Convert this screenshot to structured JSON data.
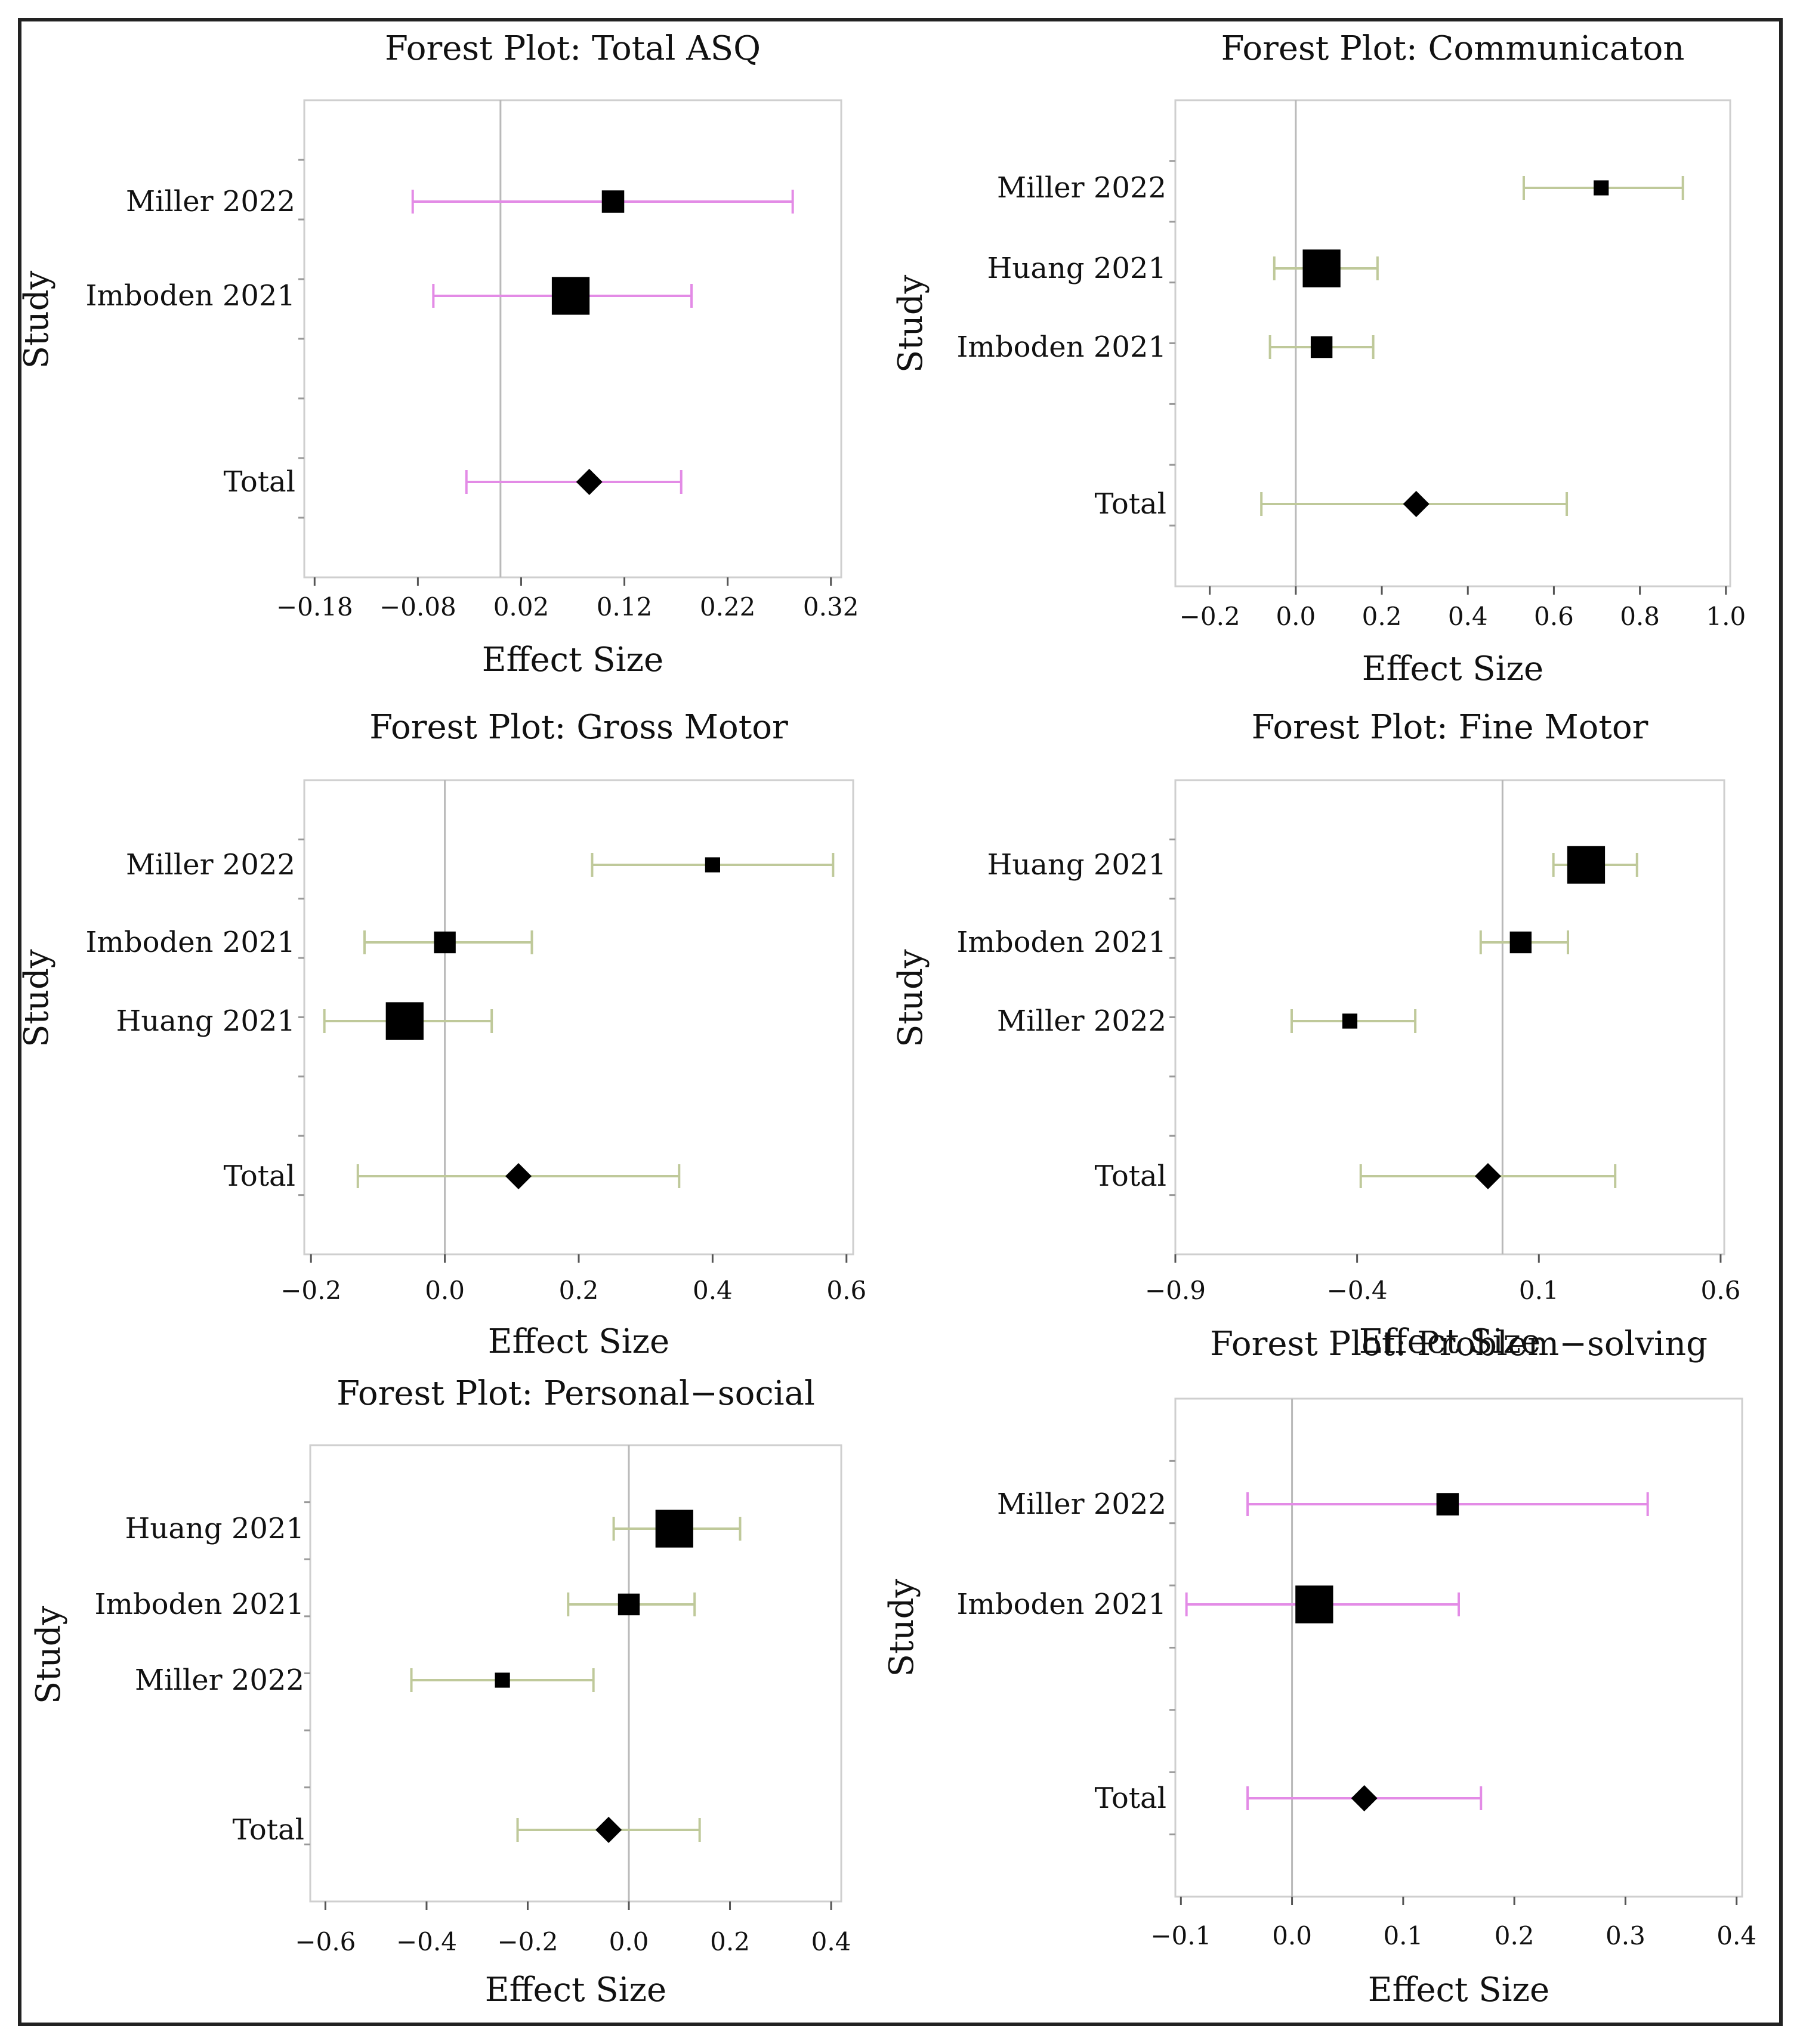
{
  "figure_colors": {
    "magenta_ci": "#e38be6",
    "olive_ci": "#bfc99a",
    "frame": "#cfcfcf",
    "zero_line": "#b9b9b9",
    "marker": "#000000"
  },
  "chart_data": [
    {
      "type": "forest",
      "title": "Forest Plot: Total ASQ",
      "xlabel": "Effect Size",
      "ylabel": "Study",
      "xlim": [
        -0.19,
        0.33
      ],
      "ticks": [
        -0.18,
        -0.08,
        0.02,
        0.12,
        0.22,
        0.32
      ],
      "tick_labels": [
        "−0.18",
        "−0.08",
        "0.02",
        "0.12",
        "0.22",
        "0.32"
      ],
      "ci_color": "#e38be6",
      "studies": [
        {
          "name": "Miller 2022",
          "es": 0.109,
          "lo": -0.085,
          "hi": 0.283,
          "weight": 0.42
        },
        {
          "name": "Imboden 2021",
          "es": 0.068,
          "lo": -0.065,
          "hi": 0.185,
          "weight": 0.88
        }
      ],
      "total": {
        "name": "Total",
        "es": 0.086,
        "lo": -0.033,
        "hi": 0.175
      }
    },
    {
      "type": "forest",
      "title": "Forest Plot: Communicaton",
      "xlabel": "Effect Size",
      "ylabel": "Study",
      "xlim": [
        -0.28,
        1.01
      ],
      "ticks": [
        -0.2,
        0.0,
        0.2,
        0.4,
        0.6,
        0.8,
        1.0
      ],
      "tick_labels": [
        "−0.2",
        "0.0",
        "0.2",
        "0.4",
        "0.6",
        "0.8",
        "1.0"
      ],
      "ci_color": "#bfc99a",
      "studies": [
        {
          "name": "Miller 2022",
          "es": 0.71,
          "lo": 0.53,
          "hi": 0.9,
          "weight": 0.2
        },
        {
          "name": "Huang 2021",
          "es": 0.06,
          "lo": -0.05,
          "hi": 0.19,
          "weight": 0.88
        },
        {
          "name": "Imboden 2021",
          "es": 0.06,
          "lo": -0.06,
          "hi": 0.18,
          "weight": 0.4
        }
      ],
      "total": {
        "name": "Total",
        "es": 0.28,
        "lo": -0.08,
        "hi": 0.63
      }
    },
    {
      "type": "forest",
      "title": "Forest Plot: Gross Motor",
      "xlabel": "Effect Size",
      "ylabel": "Study",
      "xlim": [
        -0.21,
        0.61
      ],
      "ticks": [
        -0.2,
        0.0,
        0.2,
        0.4,
        0.6
      ],
      "tick_labels": [
        "−0.2",
        "0.0",
        "0.2",
        "0.4",
        "0.6"
      ],
      "ci_color": "#bfc99a",
      "studies": [
        {
          "name": "Miller 2022",
          "es": 0.4,
          "lo": 0.22,
          "hi": 0.58,
          "weight": 0.2
        },
        {
          "name": "Imboden 2021",
          "es": 0.0,
          "lo": -0.12,
          "hi": 0.13,
          "weight": 0.4
        },
        {
          "name": "Huang 2021",
          "es": -0.06,
          "lo": -0.18,
          "hi": 0.07,
          "weight": 0.88
        }
      ],
      "total": {
        "name": "Total",
        "es": 0.11,
        "lo": -0.13,
        "hi": 0.35
      }
    },
    {
      "type": "forest",
      "title": "Forest Plot: Fine Motor",
      "xlabel": "Effect Size",
      "ylabel": "Study",
      "xlim": [
        -0.9,
        0.61
      ],
      "ticks": [
        -0.9,
        -0.4,
        0.1,
        0.6
      ],
      "tick_labels": [
        "−0.9",
        "−0.4",
        "0.1",
        "0.6"
      ],
      "ci_color": "#bfc99a",
      "studies": [
        {
          "name": "Huang 2021",
          "es": 0.23,
          "lo": 0.14,
          "hi": 0.37,
          "weight": 0.88
        },
        {
          "name": "Imboden 2021",
          "es": 0.05,
          "lo": -0.06,
          "hi": 0.18,
          "weight": 0.4
        },
        {
          "name": "Miller 2022",
          "es": -0.42,
          "lo": -0.58,
          "hi": -0.24,
          "weight": 0.2
        }
      ],
      "total": {
        "name": "Total",
        "es": -0.04,
        "lo": -0.39,
        "hi": 0.31
      }
    },
    {
      "type": "forest",
      "title": "Forest Plot: Personal−social",
      "xlabel": "Effect Size",
      "ylabel": "Study",
      "xlim": [
        -0.63,
        0.42
      ],
      "ticks": [
        -0.6,
        -0.4,
        -0.2,
        0.0,
        0.2,
        0.4
      ],
      "tick_labels": [
        "−0.6",
        "−0.4",
        "−0.2",
        "0.0",
        "0.2",
        "0.4"
      ],
      "ci_color": "#bfc99a",
      "studies": [
        {
          "name": "Huang 2021",
          "es": 0.09,
          "lo": -0.03,
          "hi": 0.22,
          "weight": 0.88
        },
        {
          "name": "Imboden 2021",
          "es": 0.0,
          "lo": -0.12,
          "hi": 0.13,
          "weight": 0.4
        },
        {
          "name": "Miller 2022",
          "es": -0.25,
          "lo": -0.43,
          "hi": -0.07,
          "weight": 0.2
        }
      ],
      "total": {
        "name": "Total",
        "es": -0.04,
        "lo": -0.22,
        "hi": 0.14
      }
    },
    {
      "type": "forest",
      "title": "Forest Plot: Problem−solving",
      "xlabel": "Effect Size",
      "ylabel": "Study",
      "xlim": [
        -0.105,
        0.405
      ],
      "ticks": [
        -0.1,
        0.0,
        0.1,
        0.2,
        0.3,
        0.4
      ],
      "tick_labels": [
        "−0.1",
        "0.0",
        "0.1",
        "0.2",
        "0.3",
        "0.4"
      ],
      "ci_color": "#e38be6",
      "studies": [
        {
          "name": "Miller 2022",
          "es": 0.14,
          "lo": -0.04,
          "hi": 0.32,
          "weight": 0.42
        },
        {
          "name": "Imboden 2021",
          "es": 0.02,
          "lo": -0.095,
          "hi": 0.15,
          "weight": 0.88
        }
      ],
      "total": {
        "name": "Total",
        "es": 0.065,
        "lo": -0.04,
        "hi": 0.17
      }
    }
  ]
}
